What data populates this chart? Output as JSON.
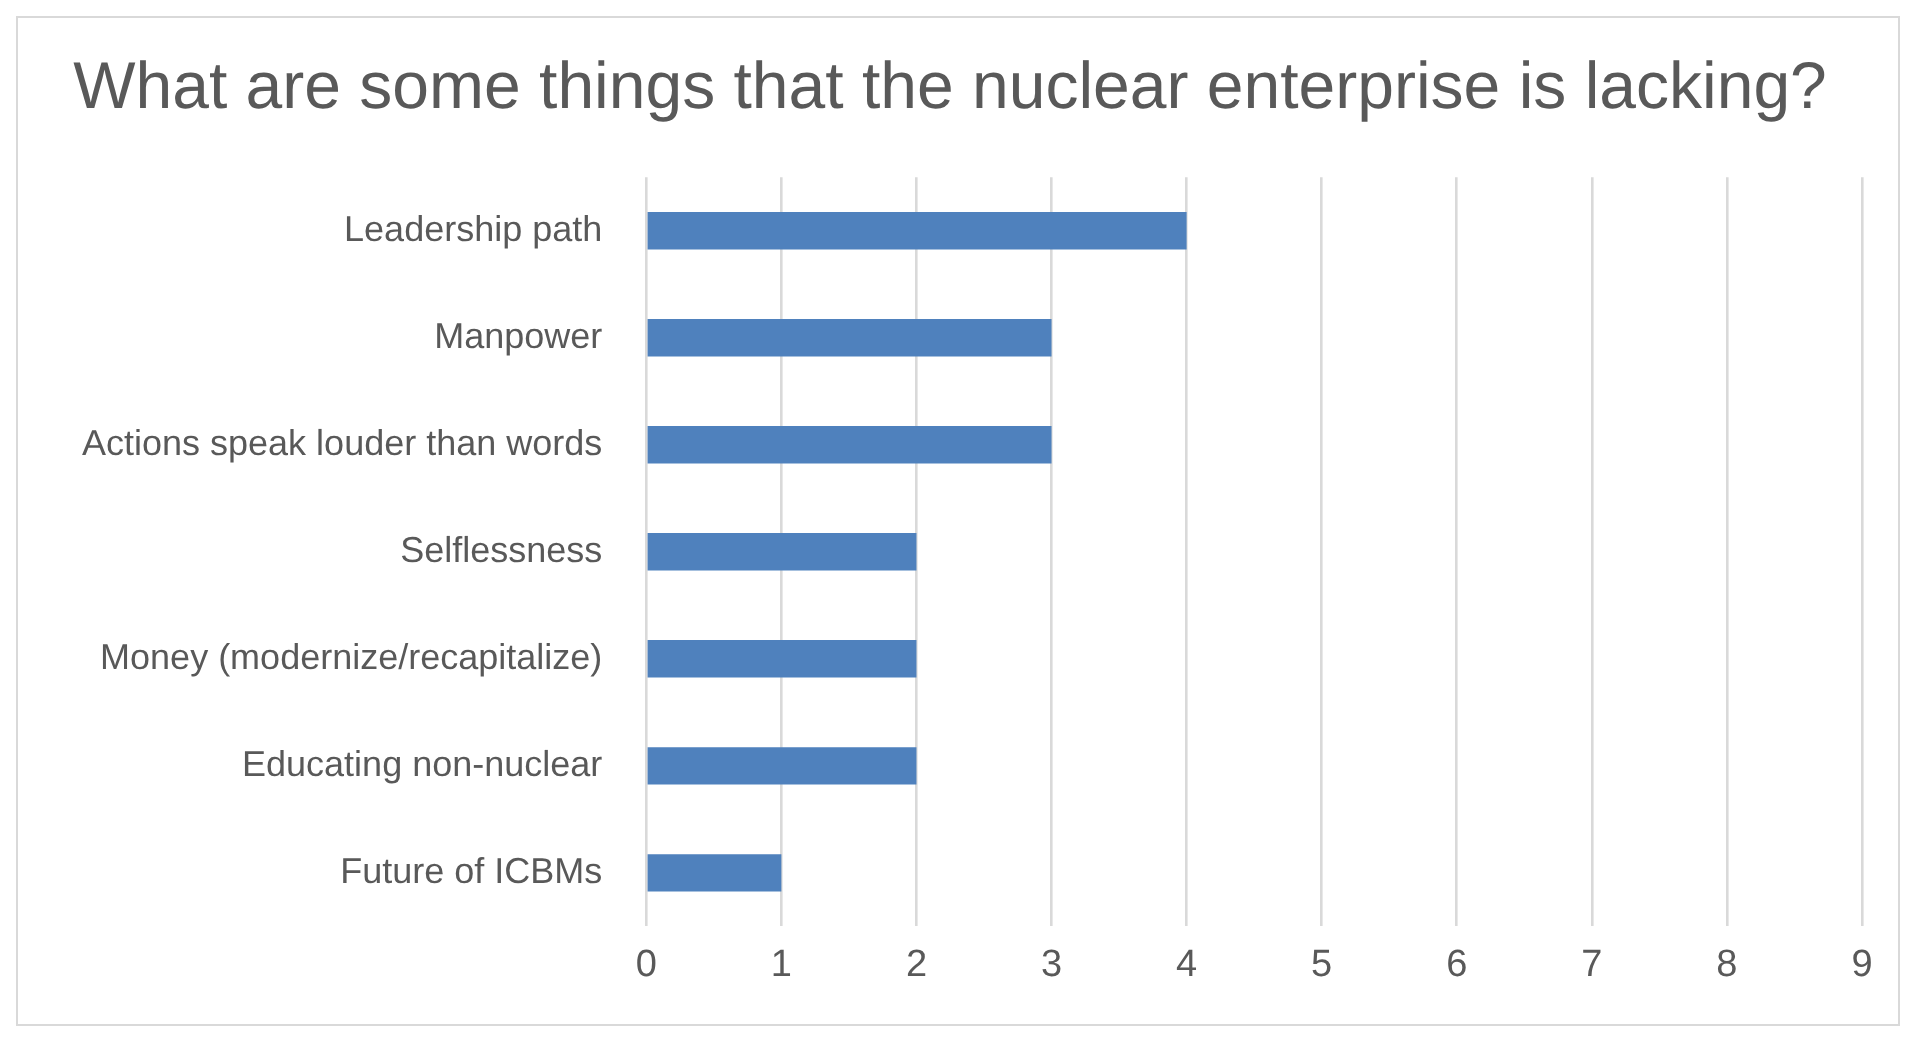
{
  "chart_data": {
    "type": "bar",
    "orientation": "horizontal",
    "title": "What are some things that the nuclear enterprise is lacking?",
    "categories": [
      "Leadership path",
      "Manpower",
      "Actions speak louder than words",
      "Selflessness",
      "Money (modernize/recapitalize)",
      "Educating non-nuclear",
      "Future of ICBMs"
    ],
    "values": [
      4,
      3,
      3,
      2,
      2,
      2,
      1
    ],
    "color": "#4f81bd",
    "xlim": [
      0,
      9
    ],
    "xticks": [
      0,
      1,
      2,
      3,
      4,
      5,
      6,
      7,
      8,
      9
    ],
    "grid": "x",
    "legend": false
  }
}
